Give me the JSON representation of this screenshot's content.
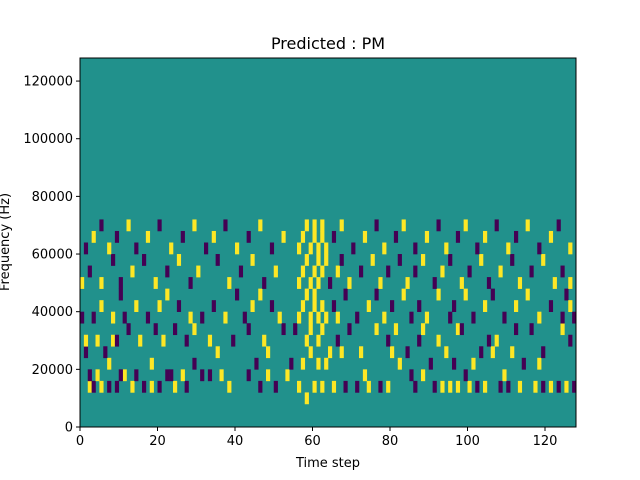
{
  "chart_data": {
    "type": "heatmap",
    "title": "Predicted : PM",
    "xlabel": "Time step",
    "ylabel": "Frequency (Hz)",
    "xlim": [
      0,
      128
    ],
    "ylim": [
      0,
      128000
    ],
    "x_ticks": [
      0,
      20,
      40,
      60,
      80,
      100,
      120
    ],
    "y_ticks": [
      0,
      20000,
      40000,
      60000,
      80000,
      100000,
      120000
    ],
    "grid": false,
    "legend": "none",
    "colors": {
      "background": "#21918c",
      "high": "#fde725",
      "low": "#440154"
    },
    "cell_width_steps": 1,
    "cell_height_hz": 4000,
    "levels": {
      "background": 0,
      "high": 1,
      "low": -1
    },
    "cells": [
      [
        2,
        3,
        1
      ],
      [
        3,
        3,
        -1
      ],
      [
        5,
        3,
        1
      ],
      [
        7,
        3,
        -1
      ],
      [
        9,
        3,
        -1
      ],
      [
        11,
        4,
        1
      ],
      [
        13,
        3,
        1
      ],
      [
        16,
        3,
        -1
      ],
      [
        18,
        3,
        1
      ],
      [
        20,
        3,
        -1
      ],
      [
        22,
        4,
        -1
      ],
      [
        24,
        3,
        1
      ],
      [
        27,
        3,
        -1
      ],
      [
        33,
        4,
        -1
      ],
      [
        36,
        4,
        1
      ],
      [
        38,
        3,
        1
      ],
      [
        46,
        3,
        -1
      ],
      [
        48,
        4,
        1
      ],
      [
        50,
        3,
        -1
      ],
      [
        53,
        4,
        1
      ],
      [
        56,
        3,
        1
      ],
      [
        58,
        2,
        1
      ],
      [
        60,
        3,
        1
      ],
      [
        62,
        3,
        1
      ],
      [
        65,
        3,
        1
      ],
      [
        68,
        3,
        -1
      ],
      [
        71,
        3,
        -1
      ],
      [
        74,
        3,
        1
      ],
      [
        77,
        3,
        -1
      ],
      [
        79,
        3,
        1
      ],
      [
        86,
        3,
        -1
      ],
      [
        88,
        4,
        1
      ],
      [
        91,
        3,
        -1
      ],
      [
        93,
        3,
        1
      ],
      [
        95,
        3,
        1
      ],
      [
        97,
        3,
        1
      ],
      [
        100,
        3,
        1
      ],
      [
        102,
        3,
        -1
      ],
      [
        104,
        3,
        1
      ],
      [
        108,
        3,
        -1
      ],
      [
        110,
        3,
        -1
      ],
      [
        113,
        3,
        1
      ],
      [
        117,
        3,
        1
      ],
      [
        119,
        3,
        -1
      ],
      [
        121,
        3,
        1
      ],
      [
        123,
        3,
        -1
      ],
      [
        125,
        3,
        1
      ],
      [
        127,
        3,
        -1
      ],
      [
        2,
        4,
        -1
      ],
      [
        4,
        4,
        1
      ],
      [
        7,
        5,
        1
      ],
      [
        10,
        4,
        -1
      ],
      [
        14,
        4,
        -1
      ],
      [
        18,
        5,
        1
      ],
      [
        23,
        4,
        -1
      ],
      [
        26,
        4,
        1
      ],
      [
        29,
        5,
        -1
      ],
      [
        31,
        4,
        -1
      ],
      [
        43,
        4,
        -1
      ],
      [
        45,
        5,
        -1
      ],
      [
        48,
        6,
        1
      ],
      [
        54,
        5,
        -1
      ],
      [
        57,
        5,
        1
      ],
      [
        59,
        6,
        1
      ],
      [
        61,
        5,
        1
      ],
      [
        63,
        5,
        1
      ],
      [
        67,
        6,
        1
      ],
      [
        73,
        4,
        1
      ],
      [
        80,
        6,
        1
      ],
      [
        82,
        5,
        1
      ],
      [
        85,
        4,
        -1
      ],
      [
        90,
        5,
        -1
      ],
      [
        96,
        5,
        -1
      ],
      [
        99,
        4,
        -1
      ],
      [
        101,
        5,
        1
      ],
      [
        106,
        6,
        1
      ],
      [
        109,
        4,
        1
      ],
      [
        114,
        5,
        -1
      ],
      [
        118,
        5,
        1
      ],
      [
        1,
        6,
        -1
      ],
      [
        1,
        7,
        1
      ],
      [
        4,
        7,
        1
      ],
      [
        6,
        6,
        -1
      ],
      [
        8,
        7,
        1
      ],
      [
        9,
        7,
        -1
      ],
      [
        12,
        8,
        -1
      ],
      [
        15,
        7,
        1
      ],
      [
        19,
        8,
        -1
      ],
      [
        21,
        7,
        1
      ],
      [
        24,
        8,
        -1
      ],
      [
        27,
        7,
        -1
      ],
      [
        29,
        8,
        1
      ],
      [
        33,
        7,
        1
      ],
      [
        35,
        6,
        1
      ],
      [
        39,
        7,
        -1
      ],
      [
        43,
        8,
        -1
      ],
      [
        47,
        7,
        1
      ],
      [
        52,
        8,
        -1
      ],
      [
        55,
        8,
        -1
      ],
      [
        58,
        7,
        1
      ],
      [
        59,
        8,
        1
      ],
      [
        61,
        7,
        1
      ],
      [
        62,
        8,
        1
      ],
      [
        64,
        6,
        1
      ],
      [
        66,
        7,
        -1
      ],
      [
        69,
        8,
        -1
      ],
      [
        72,
        6,
        1
      ],
      [
        76,
        8,
        1
      ],
      [
        79,
        7,
        -1
      ],
      [
        81,
        8,
        1
      ],
      [
        84,
        6,
        -1
      ],
      [
        87,
        7,
        -1
      ],
      [
        88,
        8,
        1
      ],
      [
        92,
        7,
        1
      ],
      [
        94,
        6,
        1
      ],
      [
        97,
        8,
        1
      ],
      [
        98,
        8,
        -1
      ],
      [
        103,
        6,
        -1
      ],
      [
        105,
        7,
        -1
      ],
      [
        107,
        7,
        1
      ],
      [
        111,
        6,
        1
      ],
      [
        112,
        8,
        -1
      ],
      [
        116,
        8,
        -1
      ],
      [
        119,
        6,
        -1
      ],
      [
        124,
        8,
        1
      ],
      [
        126,
        7,
        -1
      ],
      [
        0,
        9,
        -1
      ],
      [
        3,
        9,
        -1
      ],
      [
        5,
        10,
        1
      ],
      [
        8,
        9,
        1
      ],
      [
        10,
        11,
        -1
      ],
      [
        11,
        9,
        -1
      ],
      [
        14,
        10,
        1
      ],
      [
        17,
        9,
        -1
      ],
      [
        20,
        10,
        1
      ],
      [
        22,
        11,
        1
      ],
      [
        25,
        10,
        -1
      ],
      [
        28,
        9,
        1
      ],
      [
        31,
        9,
        -1
      ],
      [
        34,
        10,
        -1
      ],
      [
        37,
        9,
        1
      ],
      [
        40,
        11,
        -1
      ],
      [
        42,
        9,
        -1
      ],
      [
        44,
        10,
        1
      ],
      [
        46,
        11,
        1
      ],
      [
        49,
        10,
        -1
      ],
      [
        51,
        9,
        1
      ],
      [
        56,
        9,
        1
      ],
      [
        57,
        10,
        1
      ],
      [
        58,
        11,
        1
      ],
      [
        59,
        9,
        1
      ],
      [
        60,
        10,
        1
      ],
      [
        60,
        11,
        1
      ],
      [
        61,
        9,
        1
      ],
      [
        62,
        10,
        1
      ],
      [
        63,
        9,
        1
      ],
      [
        65,
        10,
        -1
      ],
      [
        66,
        9,
        1
      ],
      [
        68,
        11,
        -1
      ],
      [
        71,
        9,
        -1
      ],
      [
        74,
        10,
        1
      ],
      [
        76,
        11,
        -1
      ],
      [
        78,
        9,
        1
      ],
      [
        80,
        10,
        -1
      ],
      [
        83,
        11,
        1
      ],
      [
        85,
        9,
        -1
      ],
      [
        87,
        10,
        -1
      ],
      [
        89,
        9,
        1
      ],
      [
        92,
        11,
        1
      ],
      [
        95,
        9,
        -1
      ],
      [
        96,
        10,
        -1
      ],
      [
        99,
        11,
        1
      ],
      [
        101,
        9,
        -1
      ],
      [
        104,
        10,
        1
      ],
      [
        106,
        11,
        -1
      ],
      [
        109,
        9,
        -1
      ],
      [
        112,
        10,
        1
      ],
      [
        115,
        11,
        1
      ],
      [
        118,
        9,
        1
      ],
      [
        121,
        10,
        -1
      ],
      [
        124,
        9,
        -1
      ],
      [
        125,
        11,
        -1
      ],
      [
        126,
        10,
        1
      ],
      [
        127,
        9,
        -1
      ],
      [
        0,
        12,
        1
      ],
      [
        2,
        13,
        -1
      ],
      [
        5,
        12,
        1
      ],
      [
        8,
        14,
        -1
      ],
      [
        10,
        12,
        -1
      ],
      [
        13,
        13,
        1
      ],
      [
        16,
        14,
        -1
      ],
      [
        19,
        12,
        1
      ],
      [
        22,
        13,
        -1
      ],
      [
        25,
        14,
        1
      ],
      [
        28,
        12,
        -1
      ],
      [
        30,
        13,
        1
      ],
      [
        35,
        14,
        -1
      ],
      [
        38,
        12,
        1
      ],
      [
        41,
        13,
        -1
      ],
      [
        44,
        14,
        1
      ],
      [
        47,
        12,
        -1
      ],
      [
        50,
        13,
        1
      ],
      [
        56,
        12,
        1
      ],
      [
        57,
        13,
        1
      ],
      [
        58,
        14,
        1
      ],
      [
        59,
        12,
        1
      ],
      [
        60,
        13,
        1
      ],
      [
        61,
        14,
        1
      ],
      [
        61,
        12,
        1
      ],
      [
        62,
        13,
        1
      ],
      [
        63,
        14,
        1
      ],
      [
        64,
        12,
        -1
      ],
      [
        66,
        13,
        1
      ],
      [
        67,
        14,
        -1
      ],
      [
        69,
        12,
        1
      ],
      [
        72,
        13,
        -1
      ],
      [
        75,
        14,
        1
      ],
      [
        77,
        12,
        1
      ],
      [
        79,
        13,
        -1
      ],
      [
        82,
        14,
        -1
      ],
      [
        84,
        12,
        1
      ],
      [
        86,
        13,
        -1
      ],
      [
        88,
        14,
        1
      ],
      [
        91,
        12,
        -1
      ],
      [
        93,
        13,
        1
      ],
      [
        95,
        14,
        -1
      ],
      [
        98,
        12,
        1
      ],
      [
        100,
        13,
        -1
      ],
      [
        103,
        14,
        1
      ],
      [
        105,
        12,
        -1
      ],
      [
        108,
        13,
        1
      ],
      [
        111,
        14,
        -1
      ],
      [
        113,
        12,
        1
      ],
      [
        116,
        13,
        -1
      ],
      [
        119,
        14,
        1
      ],
      [
        122,
        12,
        1
      ],
      [
        124,
        13,
        -1
      ],
      [
        126,
        12,
        1
      ],
      [
        1,
        15,
        -1
      ],
      [
        3,
        16,
        1
      ],
      [
        5,
        17,
        -1
      ],
      [
        7,
        15,
        1
      ],
      [
        9,
        16,
        -1
      ],
      [
        12,
        17,
        1
      ],
      [
        14,
        15,
        -1
      ],
      [
        17,
        16,
        1
      ],
      [
        20,
        17,
        -1
      ],
      [
        23,
        15,
        1
      ],
      [
        26,
        16,
        -1
      ],
      [
        29,
        17,
        1
      ],
      [
        32,
        15,
        -1
      ],
      [
        34,
        16,
        1
      ],
      [
        37,
        17,
        -1
      ],
      [
        40,
        15,
        1
      ],
      [
        43,
        16,
        -1
      ],
      [
        46,
        17,
        1
      ],
      [
        49,
        15,
        -1
      ],
      [
        52,
        16,
        1
      ],
      [
        56,
        15,
        1
      ],
      [
        57,
        16,
        1
      ],
      [
        58,
        17,
        1
      ],
      [
        59,
        15,
        1
      ],
      [
        60,
        16,
        1
      ],
      [
        60,
        17,
        1
      ],
      [
        61,
        15,
        1
      ],
      [
        62,
        16,
        1
      ],
      [
        62,
        17,
        1
      ],
      [
        63,
        15,
        1
      ],
      [
        65,
        16,
        -1
      ],
      [
        67,
        17,
        1
      ],
      [
        70,
        15,
        -1
      ],
      [
        73,
        16,
        1
      ],
      [
        76,
        17,
        -1
      ],
      [
        78,
        15,
        1
      ],
      [
        81,
        16,
        -1
      ],
      [
        83,
        17,
        1
      ],
      [
        86,
        15,
        -1
      ],
      [
        89,
        16,
        1
      ],
      [
        92,
        17,
        -1
      ],
      [
        94,
        15,
        1
      ],
      [
        97,
        16,
        -1
      ],
      [
        99,
        17,
        1
      ],
      [
        102,
        15,
        -1
      ],
      [
        104,
        16,
        1
      ],
      [
        107,
        17,
        -1
      ],
      [
        110,
        15,
        1
      ],
      [
        112,
        16,
        -1
      ],
      [
        115,
        17,
        1
      ],
      [
        118,
        15,
        -1
      ],
      [
        121,
        16,
        1
      ],
      [
        123,
        17,
        -1
      ],
      [
        126,
        15,
        1
      ]
    ]
  }
}
